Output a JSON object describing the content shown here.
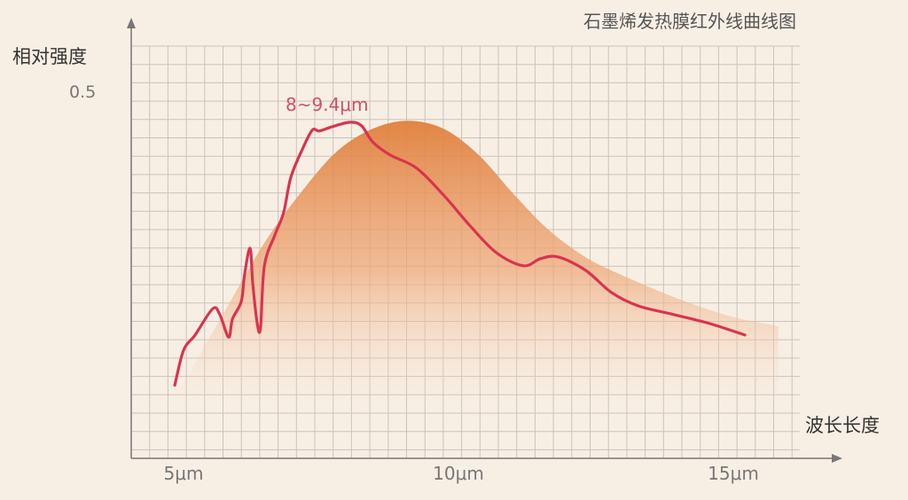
{
  "chart_data": {
    "type": "line",
    "title": "石墨烯发热膜红外线曲线图",
    "xlabel": "波长长度",
    "ylabel": "相对强度",
    "x_ticks": [
      {
        "value": 5,
        "label": "5μm"
      },
      {
        "value": 10,
        "label": "10μm"
      },
      {
        "value": 15,
        "label": "15μm"
      }
    ],
    "y_ticks": [
      {
        "value": 0.5,
        "label": "0.5"
      }
    ],
    "xlim": [
      4.05,
      16.2
    ],
    "ylim": [
      0,
      0.565
    ],
    "grid": true,
    "annotation": "8~9.4μm",
    "colors": {
      "line": "#d9344f",
      "area": "#e08a48",
      "grid": "#c9c3bc",
      "background": "#f8efe4"
    },
    "series": [
      {
        "type": "line",
        "x": [
          4.84,
          5.0,
          5.21,
          5.53,
          5.66,
          5.82,
          5.89,
          6.05,
          6.11,
          6.21,
          6.26,
          6.34,
          6.4,
          6.47,
          6.66,
          6.82,
          6.95,
          7.15,
          7.34,
          7.47,
          7.71,
          8.03,
          8.24,
          8.44,
          8.76,
          9.24,
          9.73,
          10.21,
          10.69,
          11.18,
          11.5,
          11.82,
          12.31,
          12.79,
          13.27,
          13.92,
          14.56,
          15.21
        ],
        "y": [
          0.099,
          0.147,
          0.168,
          0.204,
          0.196,
          0.165,
          0.19,
          0.214,
          0.251,
          0.287,
          0.238,
          0.184,
          0.178,
          0.263,
          0.305,
          0.336,
          0.384,
          0.421,
          0.449,
          0.448,
          0.454,
          0.46,
          0.455,
          0.433,
          0.415,
          0.397,
          0.36,
          0.318,
          0.281,
          0.263,
          0.273,
          0.275,
          0.257,
          0.226,
          0.208,
          0.196,
          0.184,
          0.168
        ]
      },
      {
        "type": "area",
        "x": [
          4.89,
          5.85,
          6.5,
          7.15,
          7.79,
          8.44,
          9.08,
          9.73,
          10.37,
          11.02,
          11.66,
          12.31,
          12.95,
          13.92,
          14.89,
          15.82
        ],
        "y": [
          0.088,
          0.214,
          0.298,
          0.365,
          0.42,
          0.451,
          0.462,
          0.451,
          0.415,
          0.36,
          0.311,
          0.275,
          0.251,
          0.22,
          0.195,
          0.18
        ]
      }
    ]
  }
}
